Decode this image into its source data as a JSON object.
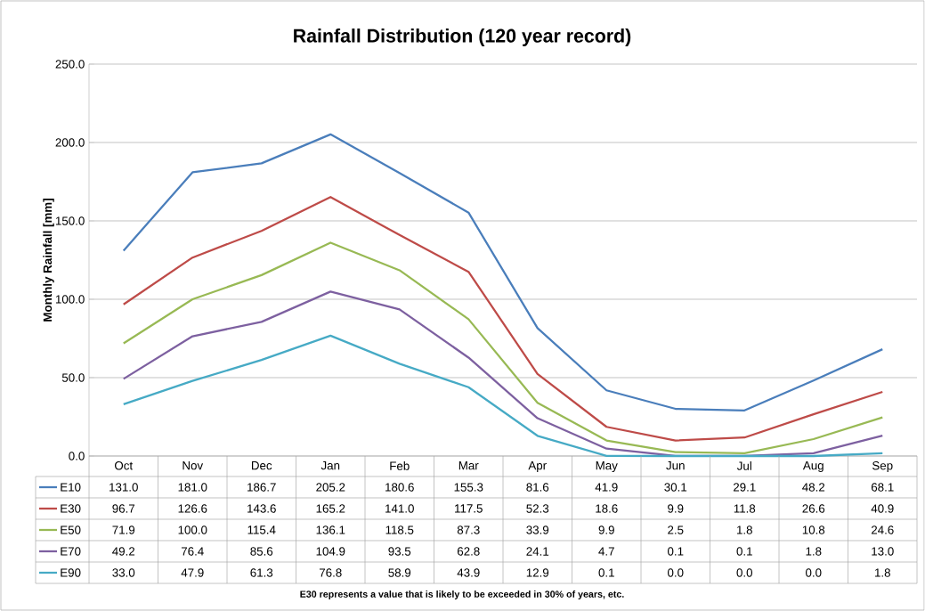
{
  "chart_data": {
    "type": "line",
    "title": "Rainfall Distribution (120 year record)",
    "ylabel": "Monthly Rainfall [mm]",
    "categories": [
      "Oct",
      "Nov",
      "Dec",
      "Jan",
      "Feb",
      "Mar",
      "Apr",
      "May",
      "Jun",
      "Jul",
      "Aug",
      "Sep"
    ],
    "series": [
      {
        "name": "E10",
        "color": "#4a7ebb",
        "values": [
          131.0,
          181.0,
          186.7,
          205.2,
          180.6,
          155.3,
          81.6,
          41.9,
          30.1,
          29.1,
          48.2,
          68.1
        ],
        "value_labels": [
          "131.0",
          "181.0",
          "186.7",
          "205.2",
          "180.6",
          "155.3",
          "81.6",
          "41.9",
          "30.1",
          "29.1",
          "48.2",
          "68.1"
        ]
      },
      {
        "name": "E30",
        "color": "#be4b48",
        "values": [
          96.7,
          126.6,
          143.6,
          165.2,
          141.0,
          117.5,
          52.3,
          18.6,
          9.9,
          11.8,
          26.6,
          40.9
        ],
        "value_labels": [
          "96.7",
          "126.6",
          "143.6",
          "165.2",
          "141.0",
          "117.5",
          "52.3",
          "18.6",
          "9.9",
          "11.8",
          "26.6",
          "40.9"
        ]
      },
      {
        "name": "E50",
        "color": "#98b954",
        "values": [
          71.9,
          100.0,
          115.4,
          136.1,
          118.5,
          87.3,
          33.9,
          9.9,
          2.5,
          1.8,
          10.8,
          24.6
        ],
        "value_labels": [
          "71.9",
          "100.0",
          "115.4",
          "136.1",
          "118.5",
          "87.3",
          "33.9",
          "9.9",
          "2.5",
          "1.8",
          "10.8",
          "24.6"
        ]
      },
      {
        "name": "E70",
        "color": "#7d60a0",
        "values": [
          49.2,
          76.4,
          85.6,
          104.9,
          93.5,
          62.8,
          24.1,
          4.7,
          0.1,
          0.1,
          1.8,
          13.0
        ],
        "value_labels": [
          "49.2",
          "76.4",
          "85.6",
          "104.9",
          "93.5",
          "62.8",
          "24.1",
          "4.7",
          "0.1",
          "0.1",
          "1.8",
          "13.0"
        ]
      },
      {
        "name": "E90",
        "color": "#46aac5",
        "values": [
          33.0,
          47.9,
          61.3,
          76.8,
          58.9,
          43.9,
          12.9,
          0.1,
          0.0,
          0.0,
          0.0,
          1.8
        ],
        "value_labels": [
          "33.0",
          "47.9",
          "61.3",
          "76.8",
          "58.9",
          "43.9",
          "12.9",
          "0.1",
          "0.0",
          "0.0",
          "0.0",
          "1.8"
        ]
      }
    ],
    "ylim": [
      0,
      250
    ],
    "yticks": [
      {
        "value": 0,
        "label": "0.0"
      },
      {
        "value": 50,
        "label": "50.0"
      },
      {
        "value": 100,
        "label": "100.0"
      },
      {
        "value": 150,
        "label": "150.0"
      },
      {
        "value": 200,
        "label": "200.0"
      },
      {
        "value": 250,
        "label": "250.0"
      }
    ],
    "grid": "y",
    "legend": "bottom",
    "marker": "none",
    "line_style": "solid",
    "annotations": [
      "E30 represents a value that is likely to be exceeded in 30% of years, etc."
    ]
  }
}
